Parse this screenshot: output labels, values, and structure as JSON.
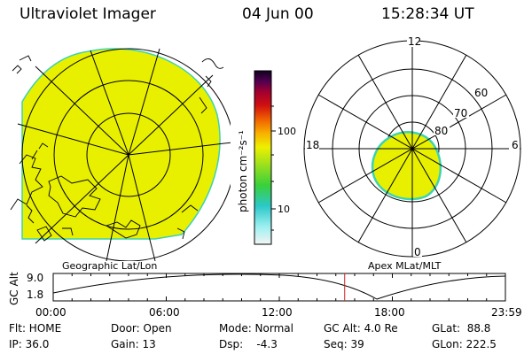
{
  "header": {
    "title": "Ultraviolet Imager",
    "date": "04 Jun 00",
    "time": "15:28:34 UT"
  },
  "colors": {
    "aurora_fill": "#e8f000",
    "aurora_edge": "#3cd2b4",
    "timeline_marker": "#d02020"
  },
  "colorbar": {
    "unit_label": "photon cm⁻²s⁻¹",
    "ticks": [
      "100",
      "10"
    ]
  },
  "geo_panel": {
    "label": "Geographic Lat/Lon"
  },
  "polar_panel": {
    "label": "Apex MLat/MLT",
    "mlt_labels": {
      "top": "12",
      "right": "6",
      "bottom": "0",
      "left": "18"
    },
    "lat_labels": [
      "60",
      "70",
      "80"
    ]
  },
  "timeline": {
    "ylabel": "GC Alt",
    "yticks": [
      "9.0",
      "1.8"
    ],
    "xticks": [
      "00:00",
      "06:00",
      "12:00",
      "18:00",
      "23:59"
    ],
    "marker_time_hours": 15.47
  },
  "status": {
    "row1": [
      {
        "key": "flt",
        "text": "Flt: HOME"
      },
      {
        "key": "door",
        "text": "Door: Open"
      },
      {
        "key": "mode",
        "text": "Mode: Normal"
      },
      {
        "key": "gcalt",
        "text": "GC Alt: 4.0 Re"
      },
      {
        "key": "glat",
        "text": "GLat:  88.8"
      }
    ],
    "row2": [
      {
        "key": "ip",
        "text": "IP: 36.0"
      },
      {
        "key": "gain",
        "text": "Gain: 13"
      },
      {
        "key": "dsp",
        "text": "Dsp:    -4.3"
      },
      {
        "key": "seq",
        "text": "Seq: 39"
      },
      {
        "key": "glon",
        "text": "GLon: 222.5"
      }
    ]
  }
}
